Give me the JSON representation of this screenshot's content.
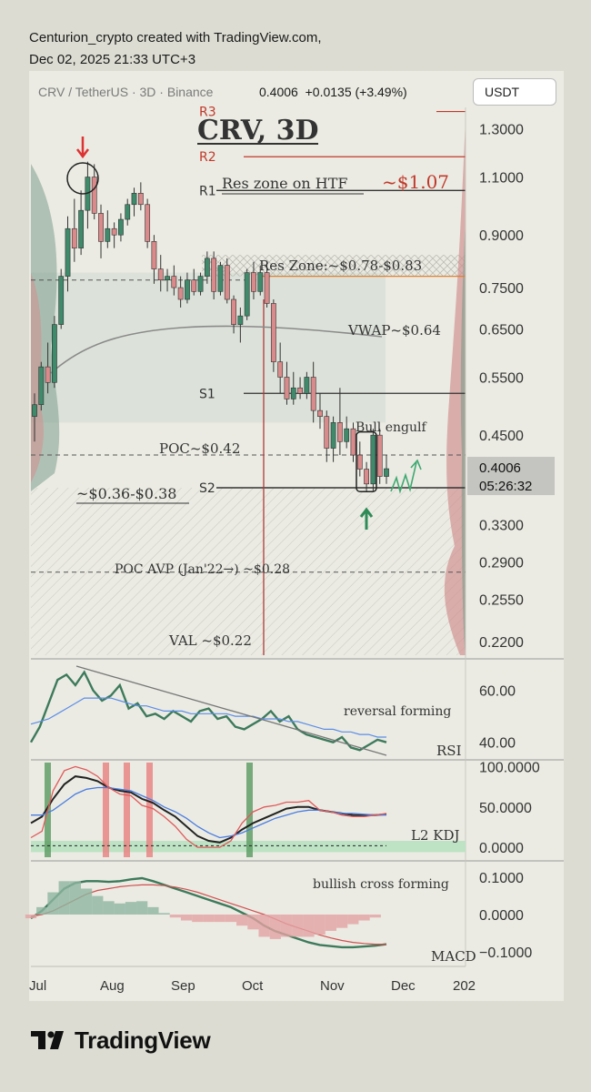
{
  "header": {
    "line1": "Centurion_crypto created with TradingView.com,",
    "line2": "Dec 02, 2025 21:33 UTC+3"
  },
  "toolbar": {
    "symbol": "CRV / TetherUS · 3D · Binance",
    "price": "0.4006",
    "change": "+0.0135 (+3.49%)",
    "currency": "USDT"
  },
  "footer": {
    "brand": "TradingView"
  },
  "colors": {
    "up": "#3e8a6b",
    "down": "#d98a8a",
    "resistance": "#c0392b",
    "support": "#333333",
    "annotation": "#333333"
  },
  "chart_data": [
    {
      "type": "candlestick",
      "title": "CRV, 3D",
      "yscale": "log",
      "ylim": [
        0.21,
        1.4
      ],
      "y_ticks": [
        "1.3000",
        "1.1000",
        "0.9000",
        "0.7500",
        "0.6500",
        "0.5500",
        "0.4500",
        "0.3300",
        "0.2900",
        "0.2550",
        "0.2200"
      ],
      "x_ticks": [
        "Jul",
        "Aug",
        "Sep",
        "Oct",
        "Nov",
        "Dec",
        "202"
      ],
      "last_price": "0.4006",
      "countdown": "05:26:32",
      "ohlc": [
        [
          0.48,
          0.52,
          0.44,
          0.5
        ],
        [
          0.5,
          0.58,
          0.49,
          0.57
        ],
        [
          0.57,
          0.62,
          0.52,
          0.54
        ],
        [
          0.54,
          0.68,
          0.53,
          0.66
        ],
        [
          0.66,
          0.8,
          0.65,
          0.78
        ],
        [
          0.78,
          0.96,
          0.74,
          0.92
        ],
        [
          0.92,
          1.02,
          0.82,
          0.86
        ],
        [
          0.86,
          1.05,
          0.84,
          0.98
        ],
        [
          0.98,
          1.16,
          0.92,
          1.1
        ],
        [
          1.1,
          1.15,
          0.95,
          0.97
        ],
        [
          0.97,
          1.0,
          0.83,
          0.88
        ],
        [
          0.88,
          0.98,
          0.86,
          0.92
        ],
        [
          0.92,
          0.94,
          0.86,
          0.9
        ],
        [
          0.9,
          0.97,
          0.88,
          0.95
        ],
        [
          0.95,
          1.02,
          0.93,
          1.0
        ],
        [
          1.0,
          1.06,
          0.96,
          1.04
        ],
        [
          1.04,
          1.08,
          0.98,
          1.0
        ],
        [
          1.0,
          1.02,
          0.86,
          0.88
        ],
        [
          0.88,
          0.9,
          0.76,
          0.8
        ],
        [
          0.8,
          0.84,
          0.74,
          0.77
        ],
        [
          0.77,
          0.8,
          0.74,
          0.78
        ],
        [
          0.78,
          0.81,
          0.73,
          0.75
        ],
        [
          0.75,
          0.78,
          0.7,
          0.72
        ],
        [
          0.72,
          0.79,
          0.71,
          0.77
        ],
        [
          0.77,
          0.8,
          0.73,
          0.74
        ],
        [
          0.74,
          0.79,
          0.73,
          0.78
        ],
        [
          0.78,
          0.85,
          0.76,
          0.83
        ],
        [
          0.83,
          0.85,
          0.72,
          0.74
        ],
        [
          0.74,
          0.82,
          0.73,
          0.81
        ],
        [
          0.81,
          0.83,
          0.71,
          0.72
        ],
        [
          0.72,
          0.73,
          0.64,
          0.66
        ],
        [
          0.66,
          0.7,
          0.62,
          0.68
        ],
        [
          0.68,
          0.8,
          0.67,
          0.79
        ],
        [
          0.79,
          0.82,
          0.72,
          0.74
        ],
        [
          0.74,
          0.81,
          0.73,
          0.79
        ],
        [
          0.79,
          0.82,
          0.7,
          0.71
        ],
        [
          0.71,
          0.72,
          0.56,
          0.58
        ],
        [
          0.58,
          0.62,
          0.52,
          0.55
        ],
        [
          0.55,
          0.58,
          0.5,
          0.51
        ],
        [
          0.51,
          0.56,
          0.5,
          0.53
        ],
        [
          0.53,
          0.55,
          0.51,
          0.52
        ],
        [
          0.52,
          0.56,
          0.51,
          0.55
        ],
        [
          0.55,
          0.58,
          0.47,
          0.49
        ],
        [
          0.49,
          0.52,
          0.46,
          0.48
        ],
        [
          0.48,
          0.49,
          0.41,
          0.43
        ],
        [
          0.43,
          0.48,
          0.41,
          0.47
        ],
        [
          0.47,
          0.53,
          0.42,
          0.44
        ],
        [
          0.44,
          0.48,
          0.43,
          0.46
        ],
        [
          0.46,
          0.47,
          0.41,
          0.42
        ],
        [
          0.42,
          0.44,
          0.39,
          0.4
        ],
        [
          0.4,
          0.41,
          0.37,
          0.38
        ],
        [
          0.38,
          0.46,
          0.37,
          0.45
        ],
        [
          0.45,
          0.46,
          0.38,
          0.39
        ],
        [
          0.39,
          0.42,
          0.38,
          0.4006
        ]
      ],
      "levels": [
        {
          "label": "R3",
          "value": 1.38,
          "color": "#c0392b"
        },
        {
          "label": "R2",
          "value": 1.18,
          "color": "#c0392b"
        },
        {
          "label": "R1",
          "value": 1.05,
          "color": "#333333"
        },
        {
          "label": "S1",
          "value": 0.52,
          "color": "#333333"
        },
        {
          "label": "S2",
          "value": 0.375,
          "color": "#333333"
        },
        {
          "label": "",
          "value": 0.78,
          "color": "#e08030"
        }
      ],
      "annotations": [
        "Res zone on HTF",
        "~$1.07",
        "Res Zone:~$0.78-$0.83",
        "VWAP~$0.64",
        "Bull engulf",
        "POC~$0.42",
        "~$0.36-$0.38",
        "POC AVP (Jan'22→) ~$0.28",
        "VAL ~$0.22"
      ]
    },
    {
      "type": "line",
      "title": "RSI",
      "ylim": [
        35,
        70
      ],
      "y_ticks": [
        "60.00",
        "40.00"
      ],
      "annotation": "reversal forming",
      "series": [
        {
          "name": "RSI",
          "values": [
            40,
            46,
            55,
            64,
            66,
            62,
            67,
            60,
            56,
            58,
            62,
            53,
            55,
            50,
            51,
            49,
            52,
            50,
            48,
            52,
            53,
            49,
            50,
            46,
            45,
            47,
            49,
            52,
            48,
            50,
            45,
            43,
            42,
            41,
            40,
            42,
            38,
            37,
            39,
            41,
            40
          ]
        },
        {
          "name": "RSI MA",
          "values": [
            47,
            48,
            49,
            51,
            53,
            55,
            57,
            57,
            57,
            57,
            56,
            55,
            54,
            54,
            53,
            52,
            52,
            52,
            51,
            51,
            51,
            51,
            51,
            50,
            50,
            50,
            49,
            49,
            49,
            48,
            48,
            47,
            46,
            45,
            45,
            44,
            44,
            43,
            43,
            42,
            42
          ]
        }
      ]
    },
    {
      "type": "line",
      "title": "L2 KDJ",
      "ylim": [
        -10,
        105
      ],
      "y_ticks": [
        "100.0000",
        "50.0000",
        "0.0000"
      ],
      "series": [
        {
          "name": "K",
          "values": [
            30,
            38,
            60,
            78,
            88,
            86,
            82,
            74,
            70,
            68,
            60,
            55,
            46,
            38,
            26,
            14,
            8,
            6,
            12,
            22,
            30,
            36,
            42,
            48,
            50,
            50,
            46,
            44,
            42,
            40,
            40,
            40,
            41
          ]
        },
        {
          "name": "D",
          "values": [
            40,
            40,
            46,
            56,
            66,
            72,
            74,
            74,
            72,
            70,
            64,
            58,
            50,
            44,
            36,
            26,
            18,
            12,
            14,
            18,
            24,
            30,
            36,
            40,
            44,
            46,
            46,
            44,
            42,
            42,
            41,
            40,
            40
          ]
        },
        {
          "name": "J",
          "values": [
            12,
            20,
            70,
            95,
            100,
            96,
            88,
            74,
            66,
            64,
            52,
            48,
            38,
            26,
            10,
            0,
            0,
            0,
            8,
            30,
            44,
            50,
            52,
            56,
            56,
            58,
            46,
            44,
            40,
            38,
            38,
            40,
            42
          ]
        }
      ]
    },
    {
      "type": "line",
      "title": "MACD",
      "ylim": [
        -0.13,
        0.13
      ],
      "y_ticks": [
        "0.1000",
        "0.0000",
        "−0.1000"
      ],
      "annotation": "bullish cross forming",
      "series": [
        {
          "name": "MACD",
          "values": [
            -0.01,
            0.01,
            0.04,
            0.07,
            0.085,
            0.09,
            0.09,
            0.088,
            0.09,
            0.095,
            0.098,
            0.09,
            0.08,
            0.07,
            0.06,
            0.05,
            0.04,
            0.03,
            0.02,
            0.005,
            -0.01,
            -0.03,
            -0.045,
            -0.055,
            -0.065,
            -0.075,
            -0.082,
            -0.085,
            -0.088,
            -0.088,
            -0.086,
            -0.084,
            -0.08
          ]
        },
        {
          "name": "Signal",
          "values": [
            -0.005,
            0.0,
            0.01,
            0.025,
            0.04,
            0.055,
            0.065,
            0.07,
            0.075,
            0.078,
            0.08,
            0.08,
            0.078,
            0.074,
            0.068,
            0.06,
            0.05,
            0.04,
            0.03,
            0.02,
            0.01,
            0.0,
            -0.012,
            -0.025,
            -0.035,
            -0.045,
            -0.055,
            -0.063,
            -0.07,
            -0.075,
            -0.078,
            -0.08,
            -0.08
          ]
        }
      ]
    }
  ]
}
